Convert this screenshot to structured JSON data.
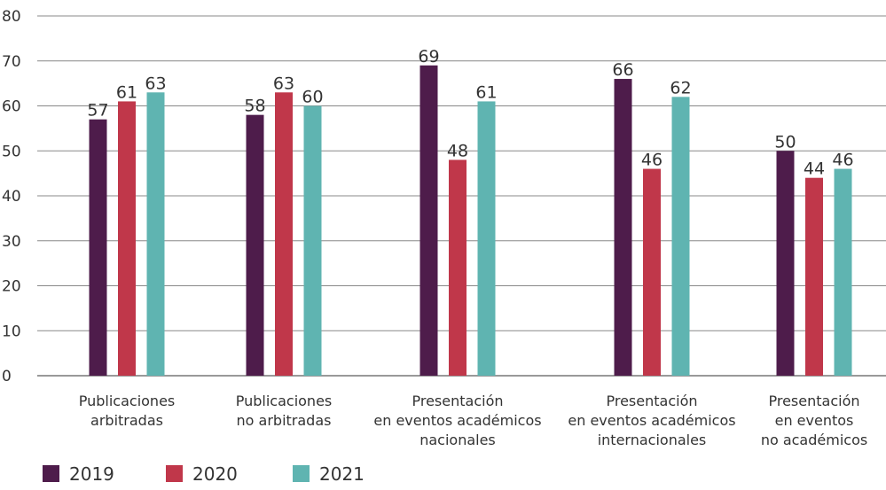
{
  "chart_data": {
    "type": "bar",
    "categories": [
      [
        "Publicaciones",
        "arbitradas"
      ],
      [
        "Publicaciones",
        "no arbitradas"
      ],
      [
        "Presentación",
        "en eventos académicos",
        "nacionales"
      ],
      [
        "Presentación",
        "en eventos académicos",
        "internacionales"
      ],
      [
        "Presentación",
        "en eventos",
        "no académicos"
      ]
    ],
    "series": [
      {
        "name": "2019",
        "color": "#4e1c4b",
        "values": [
          57,
          58,
          69,
          66,
          50
        ]
      },
      {
        "name": "2020",
        "color": "#c0374a",
        "values": [
          61,
          63,
          48,
          46,
          44
        ]
      },
      {
        "name": "2021",
        "color": "#5fb4b1",
        "values": [
          63,
          60,
          61,
          62,
          46
        ]
      }
    ],
    "ylim": [
      0,
      80
    ],
    "yticks": [
      0,
      10,
      20,
      30,
      40,
      50,
      60,
      70,
      80
    ],
    "grid": true,
    "legend": "bottom-left"
  }
}
